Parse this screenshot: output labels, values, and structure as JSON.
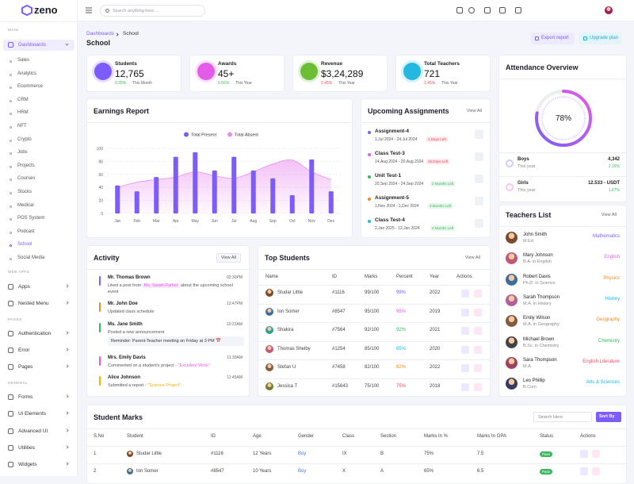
{
  "brand": "zeno",
  "search_placeholder": "Search anything here ...",
  "sidebar": {
    "sections": [
      {
        "title": "MAIN",
        "items": [
          "Dashboards"
        ],
        "subitems": [
          "Sales",
          "Analytics",
          "Ecommerce",
          "CRM",
          "HRM",
          "NFT",
          "Crypto",
          "Jobs",
          "Projects",
          "Courses",
          "Stocks",
          "Medical",
          "POS System",
          "Podcast",
          "School",
          "Social Media"
        ]
      },
      {
        "title": "WEB APPS",
        "items": [
          "Apps",
          "Nested Menu"
        ]
      },
      {
        "title": "PAGES",
        "items": [
          "Authentication",
          "Error",
          "Pages"
        ]
      },
      {
        "title": "GENERAL",
        "items": [
          "Forms",
          "Ui Elements",
          "Advanced UI",
          "Utilities",
          "Widgets"
        ]
      }
    ]
  },
  "breadcrumb": [
    "Dashboards",
    "School"
  ],
  "page_title": "School",
  "buttons": [
    "Export report",
    "Upgrade plan"
  ],
  "stats": [
    {
      "label": "Students",
      "value": "12,765",
      "change": "0.35%",
      "period": "This Month",
      "color": "#7c5cfc",
      "change_color": "#3bb75e"
    },
    {
      "label": "Awards",
      "value": "45+",
      "change": "6.56%",
      "period": "This Year",
      "color": "#e35be8",
      "change_color": "#3bb75e"
    },
    {
      "label": "Revenue",
      "value": "$3,24,289",
      "change": "2.45%",
      "period": "This Year",
      "color": "#6cbf35",
      "change_color": "#ef4a5f"
    },
    {
      "label": "Total Teachers",
      "value": "721",
      "change": "2.45%",
      "period": "This Year",
      "color": "#22b8e0",
      "change_color": "#ef4a5f"
    }
  ],
  "attendance": {
    "title": "Attendance Overview",
    "percent": 78,
    "percent_label": "78%",
    "rows": [
      {
        "name": "Boys",
        "sub": "This year",
        "value": "4,342",
        "change": "2.16%",
        "color": "#7c5cfc"
      },
      {
        "name": "Girls",
        "sub": "This year",
        "value": "12.533 - USDT",
        "change": "1.67%",
        "color": "#e35be8"
      }
    ]
  },
  "earnings_report": {
    "title": "Earnings Report",
    "type": "bar",
    "categories": [
      "Jan",
      "Feb",
      "Mar",
      "Apr",
      "May",
      "Jun",
      "Jul",
      "Aug",
      "Sep",
      "Oct",
      "Nov",
      "Dec"
    ],
    "series": [
      {
        "name": "Total Present",
        "type": "bar",
        "color": "#7c5cfc",
        "values": [
          43,
          34,
          56,
          87,
          94,
          66,
          87,
          66,
          54,
          28,
          83,
          34
        ]
      },
      {
        "name": "Total Absent",
        "type": "area",
        "color": "#e98ef0",
        "values": [
          40,
          48,
          52,
          56,
          64,
          58,
          54,
          64,
          76,
          82,
          64,
          52
        ]
      }
    ],
    "ylim": [
      0,
      100
    ],
    "yticks": [
      0,
      20,
      40,
      60,
      80,
      100
    ],
    "grid": true
  },
  "upcoming": {
    "title": "Upcoming Assignments",
    "view_all": "View All",
    "items": [
      {
        "name": "Assignment-4",
        "dates": "1,Jul 2024 - 24,Jul 2024",
        "badge": "2 Days Left",
        "dot": "#7c5cfc",
        "badge_color": "#ef4a5f"
      },
      {
        "name": "Class Test-3",
        "dates": "14,Aug 2024 - 20,Aug 2024",
        "badge": "35 Days Left",
        "dot": "#e35be8",
        "badge_color": "#ef4a5f"
      },
      {
        "name": "Unit Test-1",
        "dates": "20,Sep 2024 - 24,Sep 2024",
        "badge": "3 Months Left",
        "dot": "#3bb75e",
        "badge_color": "#3bb75e"
      },
      {
        "name": "Assignment-5",
        "dates": "1,Nov 2024 - 1,Dec 2024",
        "badge": "3 Months Left",
        "dot": "#f08a24",
        "badge_color": "#3bb75e"
      },
      {
        "name": "Class Test-4",
        "dates": "2,Jan 2025 - 12,Jan 2024",
        "badge": "4 Months Left",
        "dot": "#22b8e0",
        "badge_color": "#3bb75e"
      }
    ]
  },
  "teachers": {
    "title": "Teachers List",
    "view_all": "View All",
    "items": [
      {
        "name": "John Smith",
        "degree": "M.Ed",
        "subject": "Mathematics",
        "color": "#7c5cfc"
      },
      {
        "name": "Mary Johnson",
        "degree": "B.A. in English",
        "subject": "English",
        "color": "#e35be8"
      },
      {
        "name": "Robert Davis",
        "degree": "Ph.D. in Science",
        "subject": "Physics",
        "color": "#f08a24"
      },
      {
        "name": "Sarah Thompson",
        "degree": "M.A. in History",
        "subject": "History",
        "color": "#22b8e0"
      },
      {
        "name": "Emily Wilson",
        "degree": "M.A. in Geography",
        "subject": "Geography",
        "color": "#f08a24"
      },
      {
        "name": "Michael Brown",
        "degree": "B.Sc. in Chemistry",
        "subject": "Chemistry",
        "color": "#3bb75e"
      },
      {
        "name": "Sara Thompson",
        "degree": "M.A",
        "subject": "English Literature",
        "color": "#ef4a5f"
      },
      {
        "name": "Leo Phillip",
        "degree": "B.Com",
        "subject": "Arts & Sciences",
        "color": "#22b8e0"
      }
    ]
  },
  "activity": {
    "title": "Activity",
    "view_all": "View All",
    "items": [
      {
        "name": "Mr. Thomas Brown",
        "time": "02:30PM",
        "text": "Liked a post from",
        "tag": "Ms. Sarah Parker",
        "after": "about the upcoming school event",
        "color": "#7c5cfc"
      },
      {
        "name": "Mr. John Doe",
        "time": "12:47PM",
        "text": "Updated class schedule",
        "color": "#f08a24"
      },
      {
        "name": "Ms. Jane Smith",
        "time": "10:22AM",
        "text": "Posted a new announcement",
        "note": "Reminder: Parent-Teacher meeting on Friday at 3 PM 📅",
        "color": "#3bb75e"
      },
      {
        "name": "Mrs. Emily Davis",
        "time": "11:30AM",
        "text": "Commented on a student's project -",
        "highlight": "\"Excellent Work\"",
        "color": "#e35be8"
      },
      {
        "name": "Alice Johnson",
        "time": "11:45AM",
        "text": "Submitted a report -",
        "highlight": "\"Science Project\"",
        "color": "#f0b400"
      }
    ]
  },
  "top_students": {
    "title": "Top Students",
    "view_all": "View All",
    "headers": [
      "Name",
      "ID",
      "Marks",
      "Percent",
      "Year",
      "Actions"
    ],
    "rows": [
      [
        "Studar Little",
        "#1116",
        "99/100",
        "99%",
        "2022"
      ],
      [
        "Ion Somer",
        "#8547",
        "95/100",
        "95%",
        "2019"
      ],
      [
        "Shakira",
        "#7564",
        "92/100",
        "92%",
        "2021"
      ],
      [
        "Thomas Shelby",
        "#1254",
        "85/100",
        "85%",
        "2020"
      ],
      [
        "Stefan U",
        "#7458",
        "82/100",
        "82%",
        "2022"
      ],
      [
        "Jessica T",
        "#15643",
        "75/100",
        "75%",
        "2018"
      ]
    ],
    "percent_colors": [
      "#7c5cfc",
      "#e35be8",
      "#3bb75e",
      "#22b8e0",
      "#f08a24",
      "#ef4a5f"
    ]
  },
  "student_marks": {
    "title": "Student Marks",
    "search_placeholder": "Search Here",
    "sort": "Sort By",
    "headers": [
      "S.No",
      "Student",
      "ID",
      "Age",
      "Gender",
      "Class",
      "Section",
      "Marks In %",
      "Marks In GPA",
      "Status",
      "Actions"
    ],
    "rows": [
      [
        "1",
        "Studar Little",
        "#1116",
        "12 Years",
        "Boy",
        "IX",
        "B",
        "75%",
        "7.5",
        "Pass"
      ],
      [
        "2",
        "Ion Somer",
        "#8547",
        "10 Years",
        "Boy",
        "X",
        "A",
        "65%",
        "6.5",
        "Pass"
      ]
    ]
  }
}
